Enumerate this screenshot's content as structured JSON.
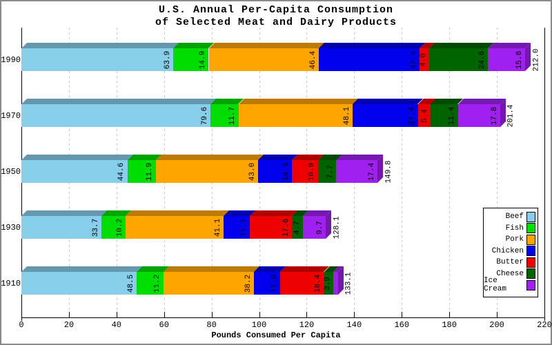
{
  "title": {
    "line1": "U.S. Annual Per-Capita Consumption",
    "line2": "of Selected Meat and Dairy Products"
  },
  "chart_data": {
    "type": "bar",
    "orientation": "horizontal",
    "stacked": true,
    "title": "U.S. Annual Per-Capita Consumption of Selected Meat and Dairy Products",
    "xlabel": "Pounds Consumed Per Capita",
    "ylabel": "",
    "xlim": [
      0,
      220
    ],
    "x_ticks": [
      0,
      20,
      40,
      60,
      80,
      100,
      120,
      140,
      160,
      180,
      200,
      220
    ],
    "grid": "vertical-dashed",
    "legend_position": "middle-right",
    "categories": [
      "1990",
      "1970",
      "1950",
      "1930",
      "1910"
    ],
    "series": [
      {
        "name": "Beef",
        "color": "#87CEEB",
        "values": [
          63.9,
          79.6,
          44.6,
          33.7,
          48.5
        ]
      },
      {
        "name": "Fish",
        "color": "#00DD00",
        "values": [
          14.9,
          11.7,
          11.9,
          10.2,
          11.2
        ]
      },
      {
        "name": "Pork",
        "color": "#FFA500",
        "values": [
          46.4,
          48.1,
          43.0,
          41.1,
          38.2
        ]
      },
      {
        "name": "Chicken",
        "color": "#0000EE",
        "values": [
          42.4,
          27.4,
          14.3,
          11.1,
          11.0
        ]
      },
      {
        "name": "Butter",
        "color": "#EE0000",
        "values": [
          4.0,
          5.4,
          10.9,
          17.6,
          18.4
        ]
      },
      {
        "name": "Cheese",
        "color": "#006400",
        "values": [
          24.6,
          11.4,
          7.7,
          4.7,
          3.9
        ]
      },
      {
        "name": "Ice Cream",
        "color": "#A020F0",
        "values": [
          15.8,
          17.8,
          17.4,
          9.7,
          1.9
        ]
      }
    ],
    "totals": [
      212.0,
      201.4,
      149.8,
      128.1,
      133.1
    ]
  }
}
